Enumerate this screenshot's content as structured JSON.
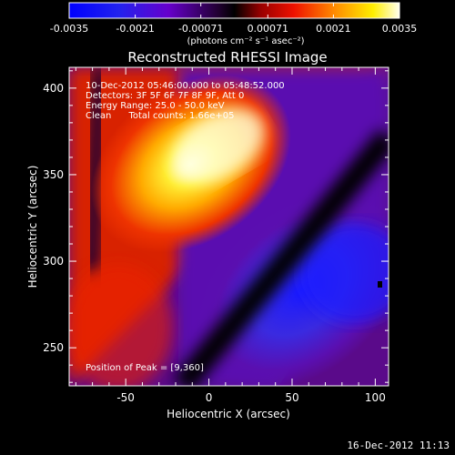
{
  "colorbar": {
    "ticks": [
      "-0.0035",
      "-0.0021",
      "-0.00071",
      "0.00071",
      "0.0021",
      "0.0035"
    ],
    "unit_label": "(photons cm⁻² s⁻¹ asec⁻²)",
    "range": [
      -0.0035,
      0.0035
    ]
  },
  "chart_data": {
    "type": "heatmap",
    "title": "Reconstructed RHESSI Image",
    "xlabel": "Heliocentric X (arcsec)",
    "ylabel": "Heliocentric Y (arcsec)",
    "xlim": [
      -84,
      108
    ],
    "ylim": [
      228,
      412
    ],
    "xticks": [
      -50,
      0,
      50,
      100
    ],
    "yticks": [
      250,
      300,
      350,
      400
    ],
    "peak": [
      9,
      360
    ],
    "annotations": [
      "10-Dec-2012 05:46:00.000 to 05:48:52.000",
      "Detectors: 3F 5F 6F 7F 8F 9F, Att 0",
      "Energy Range: 25.0 - 50.0 keV",
      "Clean      Total counts: 1.66e+05"
    ],
    "peak_label": "Position of Peak = [9,360]"
  },
  "footer": {
    "timestamp": "16-Dec-2012 11:13"
  }
}
